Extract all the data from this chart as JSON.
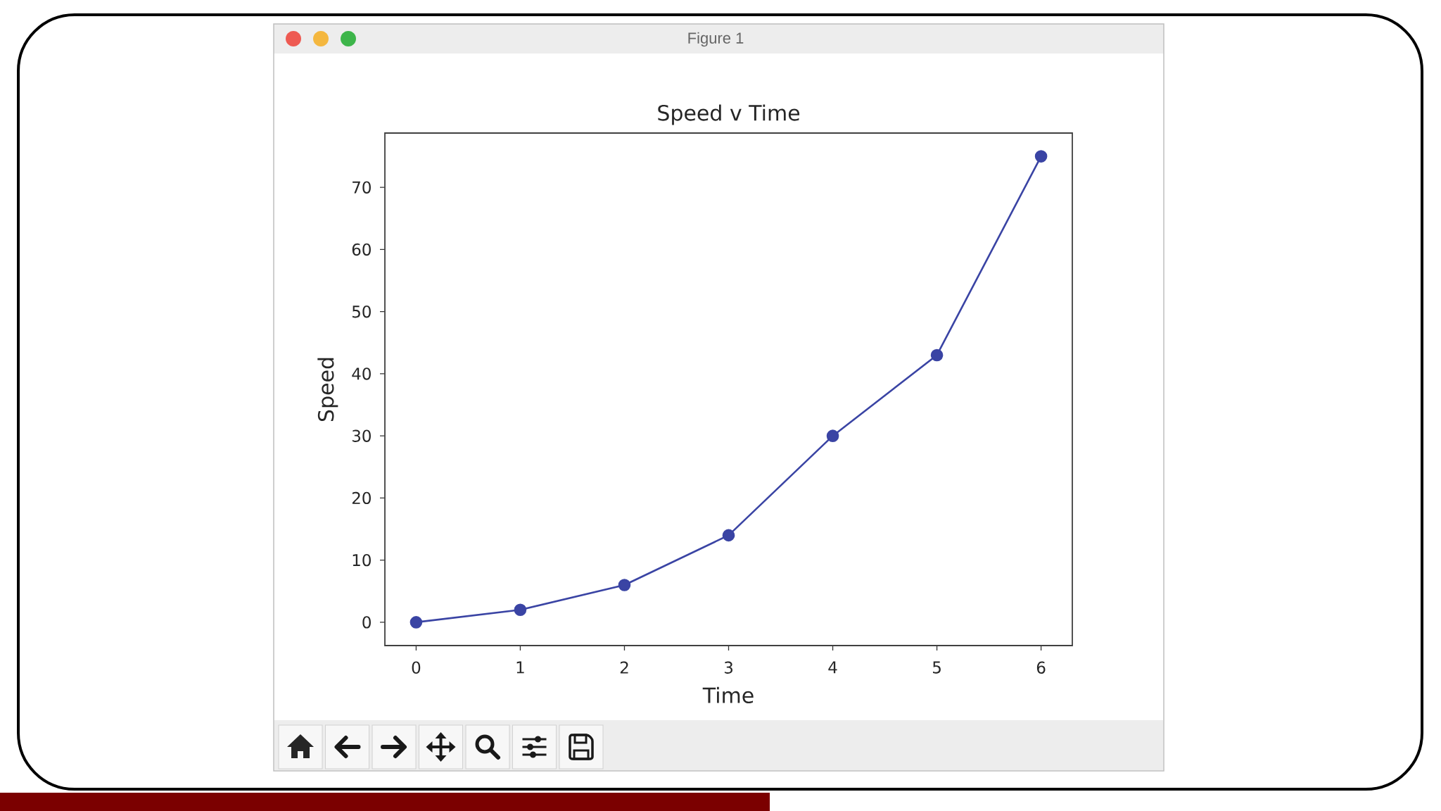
{
  "chart_data": {
    "type": "line",
    "title": "Speed v Time",
    "xlabel": "Time",
    "ylabel": "Speed",
    "x": [
      0,
      1,
      2,
      3,
      4,
      5,
      6
    ],
    "series": [
      {
        "color": "#3a44a4",
        "values": [
          0,
          2,
          6,
          14,
          30,
          43,
          75
        ]
      }
    ],
    "xlim": [
      -0.3,
      6.3
    ],
    "ylim": [
      -3.75,
      78.75
    ],
    "xticks": [
      0,
      1,
      2,
      3,
      4,
      5,
      6
    ],
    "yticks": [
      0,
      10,
      20,
      30,
      40,
      50,
      60,
      70
    ],
    "marker": "circle",
    "line_style": "solid",
    "annotations": [
      "Figure 1"
    ]
  }
}
